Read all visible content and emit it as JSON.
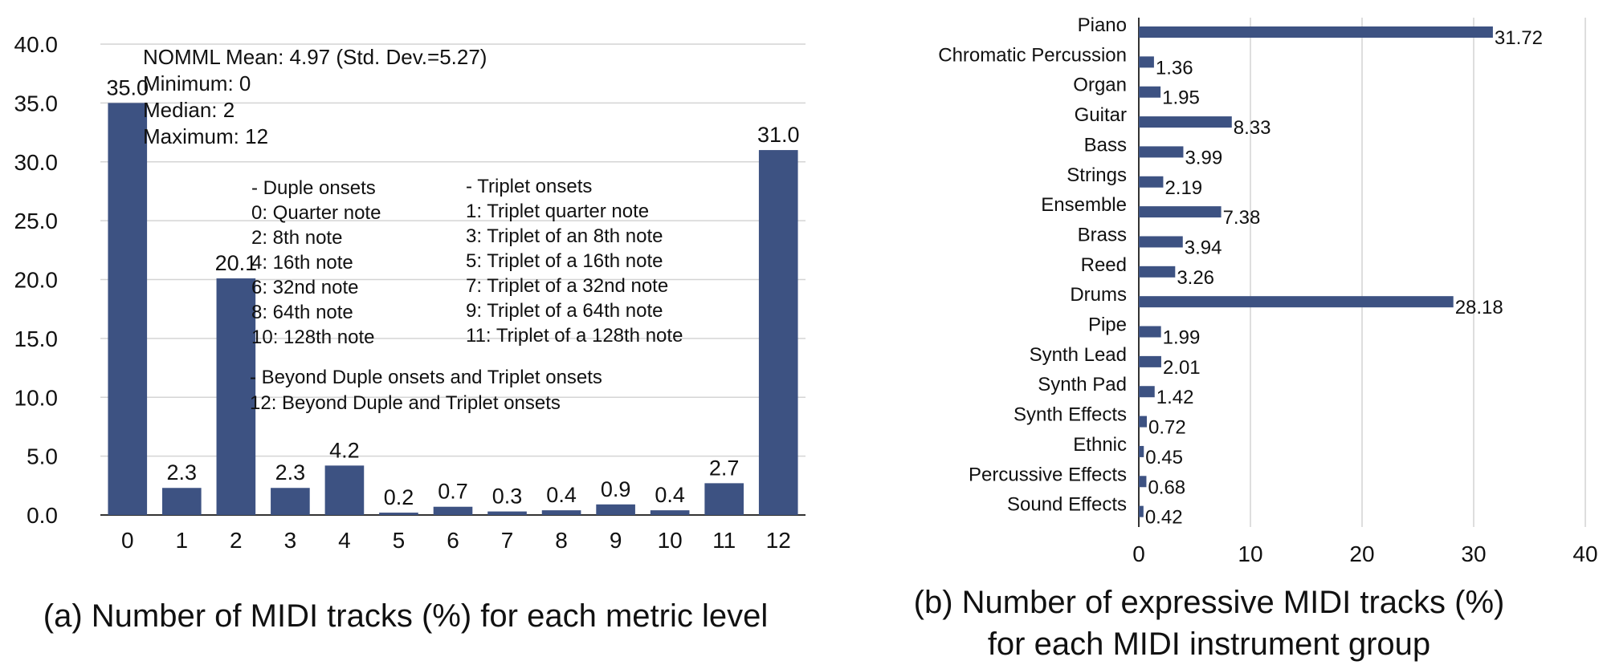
{
  "figure_a": {
    "caption": "(a) Number of MIDI tracks (%) for each metric level",
    "stats": [
      "NOMML Mean: 4.97 (Std. Dev.=5.27)",
      "Minimum: 0",
      "Median: 2",
      "Maximum: 12"
    ],
    "duple": {
      "header": "- Duple onsets",
      "lines": [
        "0: Quarter note",
        "2: 8th note",
        "4: 16th note",
        "6: 32nd note",
        "8: 64th note",
        "10: 128th note"
      ]
    },
    "triplet": {
      "header": "- Triplet onsets",
      "lines": [
        "1: Triplet quarter note",
        "3: Triplet of an 8th note",
        "5: Triplet of a 16th note",
        "7: Triplet of a 32nd note",
        "9: Triplet of a 64th note",
        "11: Triplet of a 128th note"
      ]
    },
    "beyond": {
      "header": "- Beyond Duple onsets and Triplet onsets",
      "lines": [
        "12: Beyond Duple and Triplet onsets"
      ]
    }
  },
  "figure_b": {
    "caption_line1": "(b) Number of expressive MIDI tracks (%)",
    "caption_line2": "for each MIDI instrument group"
  },
  "colors": {
    "bar": "#3d5282",
    "grid": "#d4d4d4",
    "axis": "#333333",
    "text": "#111111"
  },
  "chart_data": [
    {
      "type": "bar",
      "categories": [
        "0",
        "1",
        "2",
        "3",
        "4",
        "5",
        "6",
        "7",
        "8",
        "9",
        "10",
        "11",
        "12"
      ],
      "values": [
        35.0,
        2.3,
        20.1,
        2.3,
        4.2,
        0.2,
        0.7,
        0.3,
        0.4,
        0.9,
        0.4,
        2.7,
        31.0
      ],
      "value_labels": [
        "35.0",
        "2.3",
        "20.1",
        "2.3",
        "4.2",
        "0.2",
        "0.7",
        "0.3",
        "0.4",
        "0.9",
        "0.4",
        "2.7",
        "31.0"
      ],
      "yticks": [
        "0.0",
        "5.0",
        "10.0",
        "15.0",
        "20.0",
        "25.0",
        "30.0",
        "35.0",
        "40.0"
      ],
      "ylim": [
        0,
        40
      ],
      "grid": true,
      "orientation": "vertical"
    },
    {
      "type": "bar",
      "orientation": "horizontal",
      "categories": [
        "Piano",
        "Chromatic Percussion",
        "Organ",
        "Guitar",
        "Bass",
        "Strings",
        "Ensemble",
        "Brass",
        "Reed",
        "Drums",
        "Pipe",
        "Synth Lead",
        "Synth Pad",
        "Synth Effects",
        "Ethnic",
        "Percussive Effects",
        "Sound Effects"
      ],
      "values": [
        31.72,
        1.36,
        1.95,
        8.33,
        3.99,
        2.19,
        7.38,
        3.94,
        3.26,
        28.18,
        1.99,
        2.01,
        1.42,
        0.72,
        0.45,
        0.68,
        0.42
      ],
      "value_labels": [
        "31.72",
        "1.36",
        "1.95",
        "8.33",
        "3.99",
        "2.19",
        "7.38",
        "3.94",
        "3.26",
        "28.18",
        "1.99",
        "2.01",
        "1.42",
        "0.72",
        "0.45",
        "0.68",
        "0.42"
      ],
      "xticks": [
        "0",
        "10",
        "20",
        "30",
        "40"
      ],
      "xlim": [
        0,
        40
      ],
      "grid": true
    }
  ]
}
